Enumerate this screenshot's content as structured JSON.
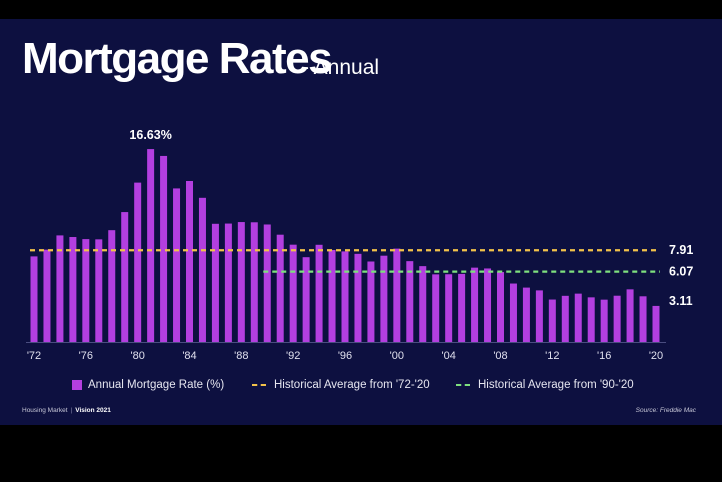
{
  "title": "Mortgage Rates",
  "subtitle": "- Annual",
  "colors": {
    "background": "#0d1040",
    "bar": "#b33fe0",
    "avg_72_20": "#f2c24a",
    "avg_90_20": "#7ee07e"
  },
  "chart_data": {
    "type": "bar",
    "years": [
      1972,
      1973,
      1974,
      1975,
      1976,
      1977,
      1978,
      1979,
      1980,
      1981,
      1982,
      1983,
      1984,
      1985,
      1986,
      1987,
      1988,
      1989,
      1990,
      1991,
      1992,
      1993,
      1994,
      1995,
      1996,
      1997,
      1998,
      1999,
      2000,
      2001,
      2002,
      2003,
      2004,
      2005,
      2006,
      2007,
      2008,
      2009,
      2010,
      2011,
      2012,
      2013,
      2014,
      2015,
      2016,
      2017,
      2018,
      2019,
      2020
    ],
    "values": [
      7.38,
      7.96,
      9.19,
      9.05,
      8.87,
      8.85,
      9.64,
      11.2,
      13.74,
      16.63,
      16.04,
      13.24,
      13.88,
      12.43,
      10.19,
      10.21,
      10.34,
      10.32,
      10.13,
      9.25,
      8.39,
      7.31,
      8.38,
      7.93,
      7.81,
      7.6,
      6.94,
      7.44,
      8.05,
      6.97,
      6.54,
      5.83,
      5.84,
      5.87,
      6.41,
      6.34,
      6.03,
      5.04,
      4.69,
      4.45,
      3.66,
      3.98,
      4.17,
      3.85,
      3.65,
      3.99,
      4.54,
      3.94,
      3.11
    ],
    "x_tick_labels": [
      "'72",
      "'76",
      "'80",
      "'84",
      "'88",
      "'92",
      "'96",
      "'00",
      "'04",
      "'08",
      "'12",
      "'16",
      "'20"
    ],
    "x_tick_years": [
      1972,
      1976,
      1980,
      1984,
      1988,
      1992,
      1996,
      2000,
      2004,
      2008,
      2012,
      2016,
      2020
    ],
    "ylim": [
      0,
      17.5
    ],
    "peak_label": "16.63%",
    "peak_year": 1981,
    "last_label": "3.11",
    "reference_lines": [
      {
        "name": "Historical Average from '72-'20",
        "value": 7.91,
        "label": "7.91",
        "start_year": 1972
      },
      {
        "name": "Historical Average from '90-'20",
        "value": 6.07,
        "label": "6.07",
        "start_year": 1990
      }
    ],
    "bar_series_name": "Annual Mortgage Rate (%)"
  },
  "legend": {
    "bar": "Annual Mortgage Rate (%)",
    "avg_72_20": "Historical Average from '72-'20",
    "avg_90_20": "Historical Average from '90-'20"
  },
  "footer": {
    "left_label": "Housing Market",
    "left_bold": "Vision 2021",
    "source": "Source: Freddie Mac"
  }
}
